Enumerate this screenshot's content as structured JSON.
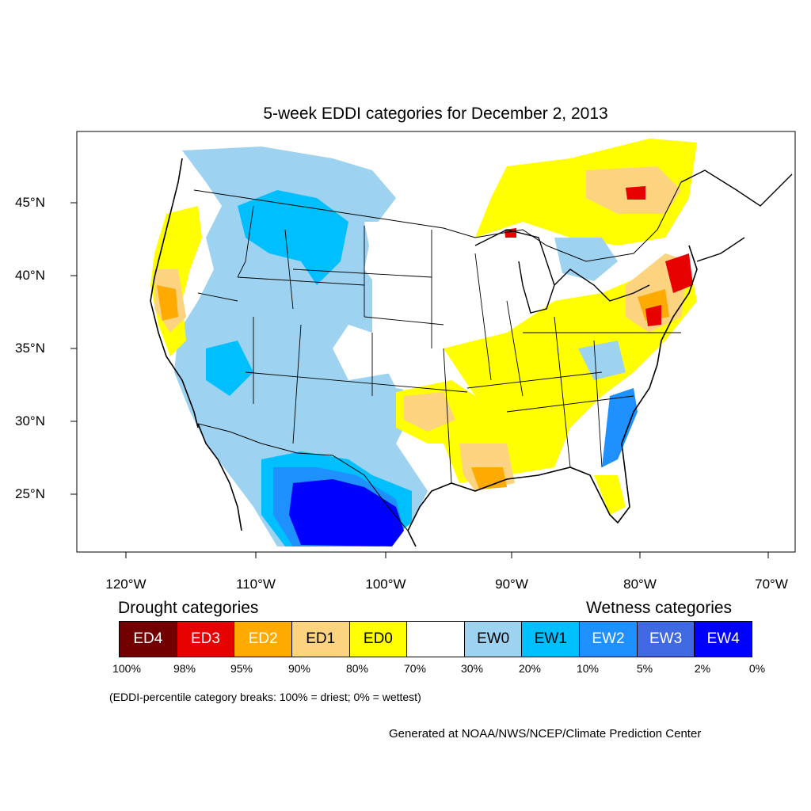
{
  "title": "5-week EDDI categories for December 2, 2013",
  "lat_labels": [
    "45°N",
    "40°N",
    "35°N",
    "30°N",
    "25°N"
  ],
  "lon_labels": [
    "120°W",
    "110°W",
    "100°W",
    "90°W",
    "80°W",
    "70°W"
  ],
  "legend": {
    "drought_heading": "Drought categories",
    "wetness_heading": "Wetness categories",
    "categories": [
      {
        "label": "ED4",
        "color": "#730000",
        "text_color": "#ffffff"
      },
      {
        "label": "ED3",
        "color": "#e60000",
        "text_color": "#ffffff"
      },
      {
        "label": "ED2",
        "color": "#ffaa00",
        "text_color": "#ffffff"
      },
      {
        "label": "ED1",
        "color": "#fcd37f",
        "text_color": "#000000"
      },
      {
        "label": "ED0",
        "color": "#ffff00",
        "text_color": "#000000"
      },
      {
        "label": "",
        "color": "#ffffff",
        "text_color": "#000000"
      },
      {
        "label": "EW0",
        "color": "#9dd3f0",
        "text_color": "#000000"
      },
      {
        "label": "EW1",
        "color": "#00bfff",
        "text_color": "#000000"
      },
      {
        "label": "EW2",
        "color": "#1e90ff",
        "text_color": "#ffffff"
      },
      {
        "label": "EW3",
        "color": "#4169e1",
        "text_color": "#ffffff"
      },
      {
        "label": "EW4",
        "color": "#0000ff",
        "text_color": "#ffffff"
      }
    ],
    "breaks": [
      "100%",
      "98%",
      "95%",
      "90%",
      "80%",
      "70%",
      "30%",
      "20%",
      "10%",
      "5%",
      "2%",
      "0%"
    ]
  },
  "note": "(EDDI-percentile category breaks: 100% = driest; 0% = wettest)",
  "credit": "Generated at NOAA/NWS/NCEP/Climate Prediction Center"
}
